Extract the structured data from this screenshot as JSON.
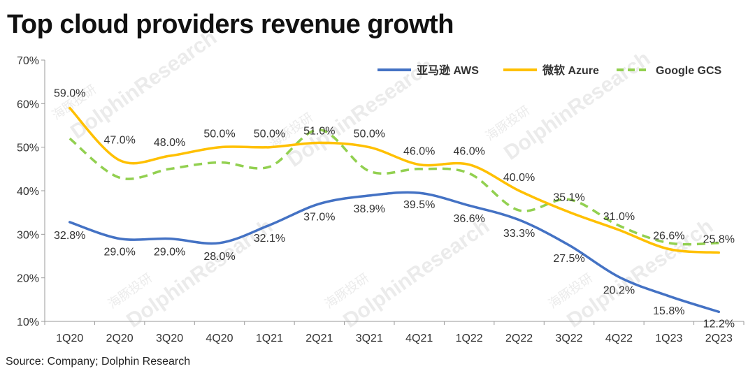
{
  "header": {
    "title": "Top cloud providers revenue growth"
  },
  "footer": {
    "source": "Source: Company; Dolphin Research"
  },
  "watermark": {
    "text": "DolphinResearch",
    "text_cn": "海豚投研"
  },
  "colors": {
    "aws": "#4472C4",
    "azure": "#FFC000",
    "gcs": "#92D050",
    "axis": "#999999",
    "text": "#333333"
  },
  "chart_data": {
    "type": "line",
    "title": "Top cloud providers revenue growth",
    "xlabel": "",
    "ylabel": "",
    "categories": [
      "1Q20",
      "2Q20",
      "3Q20",
      "4Q20",
      "1Q21",
      "2Q21",
      "3Q21",
      "4Q21",
      "1Q22",
      "2Q22",
      "3Q22",
      "4Q22",
      "1Q23",
      "2Q23"
    ],
    "ylim": [
      10,
      70
    ],
    "yticks": [
      10,
      20,
      30,
      40,
      50,
      60,
      70
    ],
    "ytick_labels": [
      "10%",
      "20%",
      "30%",
      "40%",
      "50%",
      "60%",
      "70%"
    ],
    "grid": false,
    "legend_position": "top-right",
    "series": [
      {
        "name": "亚马逊 AWS",
        "key": "aws",
        "style": "solid",
        "values": [
          32.8,
          29.0,
          29.0,
          28.0,
          32.1,
          37.0,
          38.9,
          39.5,
          36.6,
          33.3,
          27.5,
          20.2,
          15.8,
          12.2
        ],
        "labels": [
          "32.8%",
          "29.0%",
          "29.0%",
          "28.0%",
          "32.1%",
          "37.0%",
          "38.9%",
          "39.5%",
          "36.6%",
          "33.3%",
          "27.5%",
          "20.2%",
          "15.8%",
          "12.2%"
        ]
      },
      {
        "name": "微软 Azure",
        "key": "azure",
        "style": "solid",
        "values": [
          59.0,
          47.0,
          48.0,
          50.0,
          50.0,
          51.0,
          50.0,
          46.0,
          46.0,
          40.0,
          35.1,
          31.0,
          26.6,
          25.8
        ],
        "labels": [
          "59.0%",
          "47.0%",
          "48.0%",
          "50.0%",
          "50.0%",
          "51.0%",
          "50.0%",
          "46.0%",
          "46.0%",
          "40.0%",
          "35.1%",
          "31.0%",
          "26.6%",
          "25.8%"
        ]
      },
      {
        "name": "Google GCS",
        "key": "gcs",
        "style": "dashed",
        "values": [
          52.0,
          43.0,
          45.0,
          46.5,
          45.5,
          54.0,
          44.5,
          45.0,
          44.0,
          35.5,
          38.0,
          32.0,
          28.0,
          28.0
        ]
      }
    ]
  }
}
